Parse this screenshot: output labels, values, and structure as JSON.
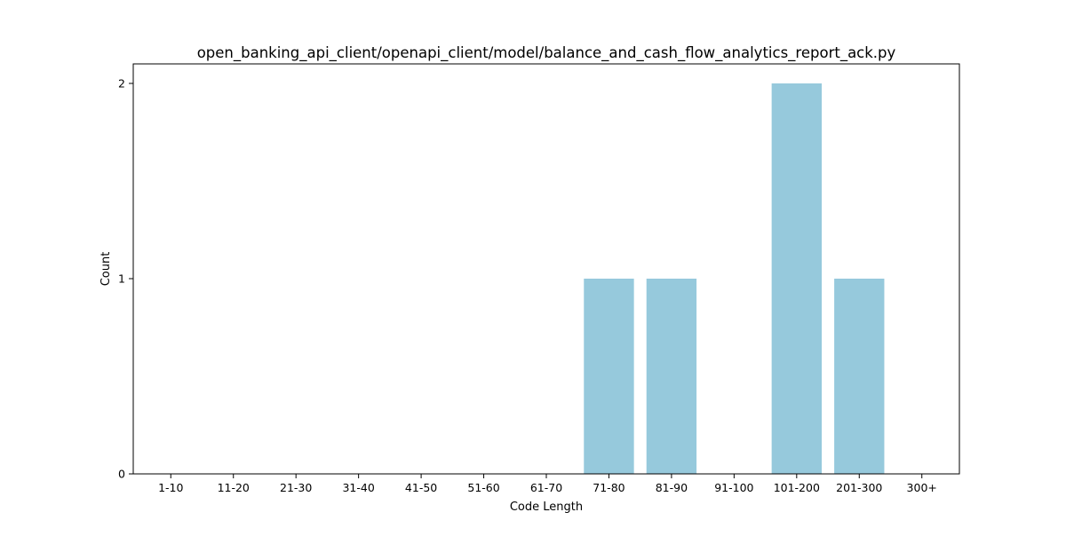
{
  "chart_data": {
    "type": "bar",
    "title": "open_banking_api_client/openapi_client/model/balance_and_cash_flow_analytics_report_ack.py",
    "xlabel": "Code Length",
    "ylabel": "Count",
    "categories": [
      "1-10",
      "11-20",
      "21-30",
      "31-40",
      "41-50",
      "51-60",
      "61-70",
      "71-80",
      "81-90",
      "91-100",
      "101-200",
      "201-300",
      "300+"
    ],
    "values": [
      0,
      0,
      0,
      0,
      0,
      0,
      0,
      1,
      1,
      0,
      2,
      1,
      0
    ],
    "yticks": [
      0,
      1,
      2
    ],
    "ylim": [
      0,
      2.1
    ],
    "bar_color": "#96c9dc",
    "grid": false,
    "legend": false
  }
}
